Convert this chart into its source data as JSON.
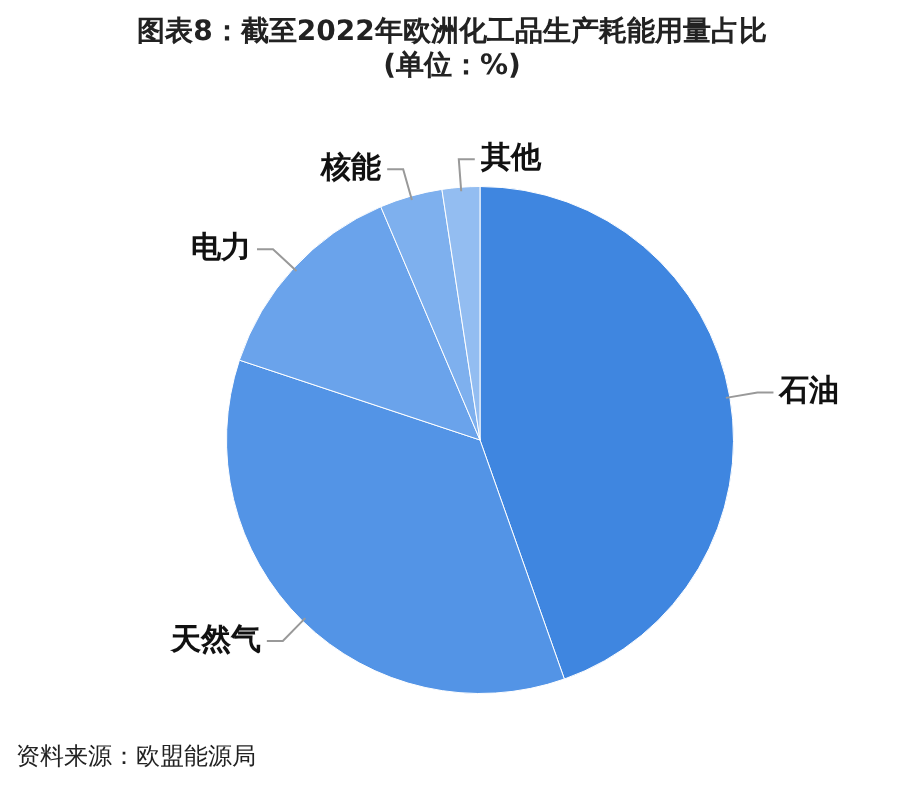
{
  "chart_data": {
    "type": "pie",
    "title": "图表8：截至2022年欧洲化工品生产耗能用量占比(单位：%)",
    "categories": [
      "石油",
      "天然气",
      "电力",
      "核能",
      "其他"
    ],
    "values": [
      44.6,
      35.5,
      13.5,
      4.0,
      2.4
    ],
    "colors": [
      "#3f86e0",
      "#5394e6",
      "#6aa3eb",
      "#7eb0ee",
      "#93bdf1"
    ],
    "legend": false,
    "annotations": [
      "资料来源：欧盟能源局"
    ]
  }
}
